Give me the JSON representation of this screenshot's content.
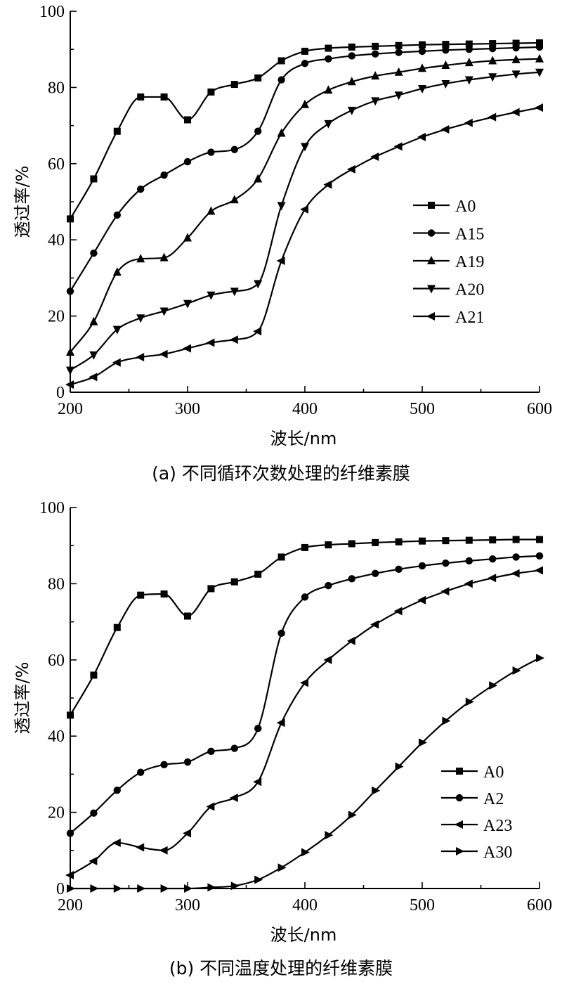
{
  "chart_data": [
    {
      "type": "line",
      "caption": "(a)  不同循环次数处理的纤维素膜",
      "xlabel": "波长/nm",
      "ylabel": "透过率/%",
      "xlim": [
        200,
        600
      ],
      "ylim": [
        0,
        100
      ],
      "xticks": [
        200,
        300,
        400,
        500,
        600
      ],
      "yticks": [
        0,
        20,
        40,
        60,
        80,
        100
      ],
      "legend_position": "middle-right",
      "x": [
        200,
        220,
        240,
        260,
        280,
        300,
        320,
        340,
        360,
        380,
        400,
        420,
        440,
        460,
        480,
        500,
        520,
        540,
        560,
        580,
        600
      ],
      "series": [
        {
          "name": "A0",
          "marker": "square",
          "values": [
            45.5,
            56,
            68.5,
            77.5,
            77.5,
            71.5,
            78.8,
            80.8,
            82.5,
            87,
            89.5,
            90.3,
            90.6,
            90.8,
            91,
            91.2,
            91.3,
            91.4,
            91.5,
            91.6,
            91.7
          ]
        },
        {
          "name": "A15",
          "marker": "circle",
          "values": [
            26.5,
            36.5,
            46.5,
            53.3,
            57,
            60.5,
            63,
            63.7,
            68.5,
            82,
            86.3,
            87.5,
            88.3,
            88.8,
            89.2,
            89.5,
            89.8,
            90,
            90.2,
            90.4,
            90.6
          ]
        },
        {
          "name": "A19",
          "marker": "triangle-up",
          "values": [
            10.5,
            18.5,
            31.5,
            35,
            35.3,
            40.5,
            47.5,
            50.5,
            56,
            68,
            75.5,
            79.3,
            81.5,
            83,
            84,
            85,
            85.8,
            86.5,
            87,
            87.3,
            87.5
          ]
        },
        {
          "name": "A20",
          "marker": "triangle-down",
          "values": [
            5.8,
            9.8,
            16.5,
            19.5,
            21.3,
            23.3,
            25.5,
            26.5,
            28.5,
            49,
            64.5,
            70.5,
            74,
            76.5,
            78,
            79.7,
            81,
            82,
            82.8,
            83.5,
            84
          ]
        },
        {
          "name": "A21",
          "marker": "triangle-left",
          "values": [
            2,
            4,
            7.8,
            9.2,
            10,
            11.5,
            13,
            13.8,
            16,
            34.5,
            48,
            54.5,
            58.5,
            61.8,
            64.5,
            67,
            69,
            70.7,
            72.2,
            73.5,
            74.7
          ]
        }
      ]
    },
    {
      "type": "line",
      "caption": "(b)  不同温度处理的纤维素膜",
      "xlabel": "波长/nm",
      "ylabel": "透过率/%",
      "xlim": [
        200,
        600
      ],
      "ylim": [
        0,
        100
      ],
      "xticks": [
        200,
        300,
        400,
        500,
        600
      ],
      "yticks": [
        0,
        20,
        40,
        60,
        80,
        100
      ],
      "legend_position": "bottom-right",
      "x": [
        200,
        220,
        240,
        260,
        280,
        300,
        320,
        340,
        360,
        380,
        400,
        420,
        440,
        460,
        480,
        500,
        520,
        540,
        560,
        580,
        600
      ],
      "series": [
        {
          "name": "A0",
          "marker": "square",
          "values": [
            45.5,
            56,
            68.5,
            77,
            77.3,
            71.5,
            78.7,
            80.5,
            82.5,
            87,
            89.5,
            90.2,
            90.5,
            90.8,
            91,
            91.2,
            91.3,
            91.4,
            91.5,
            91.6,
            91.6
          ]
        },
        {
          "name": "A2",
          "marker": "circle",
          "values": [
            14.5,
            19.8,
            25.8,
            30.5,
            32.5,
            33.2,
            36,
            36.8,
            42,
            67,
            76.5,
            79.5,
            81.3,
            82.7,
            83.8,
            84.7,
            85.4,
            86,
            86.5,
            87,
            87.3
          ]
        },
        {
          "name": "A23",
          "marker": "triangle-left",
          "values": [
            3.5,
            7.2,
            12,
            10.8,
            10,
            14.5,
            21.5,
            23.8,
            28,
            43.5,
            54,
            60,
            65,
            69.3,
            72.8,
            75.7,
            78,
            80,
            81.5,
            82.7,
            83.5
          ]
        },
        {
          "name": "A30",
          "marker": "triangle-right",
          "values": [
            0,
            0,
            0,
            0,
            0,
            0,
            0.3,
            0.7,
            2.3,
            5.5,
            9.5,
            14,
            19.3,
            25.7,
            32,
            38.3,
            44,
            49,
            53.3,
            57.2,
            60.5
          ]
        }
      ]
    }
  ]
}
